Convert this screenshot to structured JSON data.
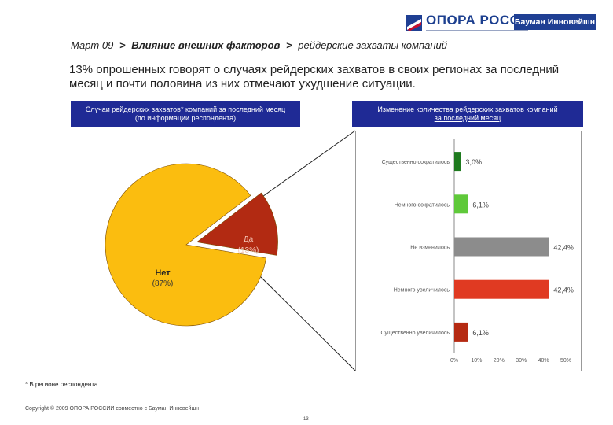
{
  "logo": {
    "title": "ОПОРА РОССИИ",
    "badge": "Бауман Инновейшн",
    "colors": {
      "blue": "#1f3f93",
      "red": "#c8102e"
    }
  },
  "breadcrumb": {
    "part1": "Март 09",
    "part2": "Влияние внешних факторов",
    "part3": "рейдерские захваты компаний",
    "sep": ">"
  },
  "headline": "13% опрошенных говорят о случаях рейдерских захватов в своих регионах за последний месяц и почти половина из них отмечают ухудшение ситуации.",
  "left_panel": {
    "title_line1_a": "Случаи рейдерских захватов* компаний ",
    "title_line1_b": "за последний месяц",
    "title_line2": "(по информации респондента)"
  },
  "right_panel": {
    "title_line1": "Изменение количества рейдерских захватов компаний",
    "title_line2": "за последний месяц"
  },
  "footnote": "* В регионе респондента",
  "copyright": "Copyright © 2009 ОПОРА РОССИИ совместно с Бауман Инновейшн",
  "page_number": "13",
  "chart_data": [
    {
      "type": "pie",
      "slices": [
        {
          "label": "Да",
          "pct_label": "(13%)",
          "value": 13,
          "color": "#b22a12"
        },
        {
          "label": "Нет",
          "pct_label": "(87%)",
          "value": 87,
          "color": "#fbbd0f"
        }
      ]
    },
    {
      "type": "bar",
      "orientation": "horizontal",
      "categories": [
        "Существенно сократилось",
        "Немного сократилось",
        "Не изменилось",
        "Немного увеличилось",
        "Существенно увеличилось"
      ],
      "values": [
        3.0,
        6.1,
        42.4,
        42.4,
        6.1
      ],
      "value_labels": [
        "3,0%",
        "6,1%",
        "42,4%",
        "42,4%",
        "6,1%"
      ],
      "colors": [
        "#1e7a1e",
        "#5fc93a",
        "#8c8c8c",
        "#e03a22",
        "#b52a12"
      ],
      "xlim": [
        0,
        50
      ],
      "xticks": [
        "0%",
        "10%",
        "20%",
        "30%",
        "40%",
        "50%"
      ]
    }
  ]
}
